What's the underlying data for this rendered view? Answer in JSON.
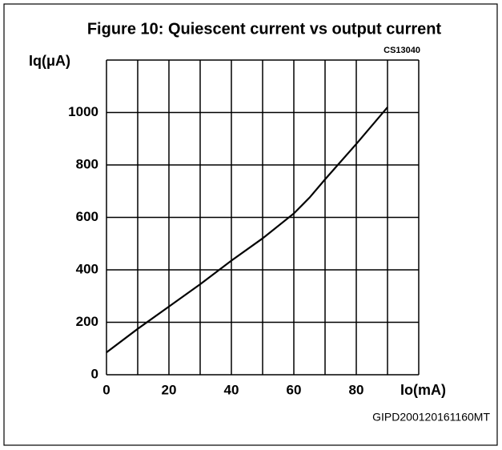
{
  "chart_data": {
    "type": "line",
    "title": "Figure 10: Quiescent current vs output current",
    "code": "CS13040",
    "ylabel": "Iq(μA)",
    "xlabel": "Io(mA)",
    "footer": "GIPD200120161160MT",
    "x": [
      0,
      10,
      20,
      30,
      40,
      50,
      60,
      65,
      70,
      80,
      90
    ],
    "series": [
      {
        "color": "#000000",
        "values": [
          85,
          175,
          260,
          345,
          435,
          520,
          615,
          675,
          745,
          880,
          1020
        ]
      }
    ],
    "xlim": [
      0,
      100
    ],
    "xticks": [
      0,
      20,
      40,
      60,
      80
    ],
    "xgrid": [
      0,
      10,
      20,
      30,
      40,
      50,
      60,
      70,
      80,
      90,
      100
    ],
    "ylim": [
      0,
      1200
    ],
    "yticks": [
      0,
      200,
      400,
      600,
      800,
      1000
    ],
    "ygrid": [
      0,
      200,
      400,
      600,
      800,
      1000,
      1200
    ],
    "grid": true
  }
}
